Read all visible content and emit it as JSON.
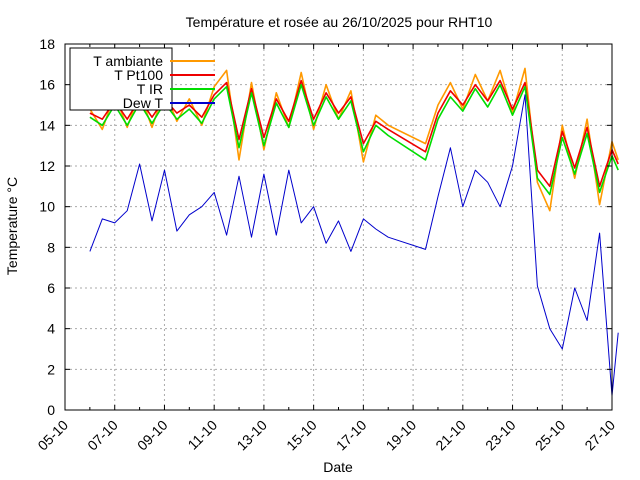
{
  "chart_data": {
    "type": "line",
    "title": "Température et rosée au 26/10/2025 pour RHT10",
    "xlabel": "Date",
    "ylabel": "Temperature °C",
    "x_range": [
      "2025-10-05",
      "2025-10-27"
    ],
    "x_ticks": [
      "05-10",
      "07-10",
      "09-10",
      "11-10",
      "13-10",
      "15-10",
      "17-10",
      "19-10",
      "21-10",
      "23-10",
      "25-10",
      "27-10"
    ],
    "ylim": [
      0,
      18
    ],
    "y_ticks": [
      0,
      2,
      4,
      6,
      8,
      10,
      12,
      14,
      16,
      18
    ],
    "grid": true,
    "legend_position": "top-left",
    "x": [
      "2025-10-06 00:00",
      "2025-10-06 12:00",
      "2025-10-07 00:00",
      "2025-10-07 12:00",
      "2025-10-08 00:00",
      "2025-10-08 12:00",
      "2025-10-09 00:00",
      "2025-10-09 12:00",
      "2025-10-10 00:00",
      "2025-10-10 12:00",
      "2025-10-11 00:00",
      "2025-10-11 12:00",
      "2025-10-12 00:00",
      "2025-10-12 12:00",
      "2025-10-13 00:00",
      "2025-10-13 12:00",
      "2025-10-14 00:00",
      "2025-10-14 12:00",
      "2025-10-15 00:00",
      "2025-10-15 12:00",
      "2025-10-16 00:00",
      "2025-10-16 12:00",
      "2025-10-17 00:00",
      "2025-10-17 12:00",
      "2025-10-18 00:00",
      "2025-10-19 12:00",
      "2025-10-20 00:00",
      "2025-10-20 12:00",
      "2025-10-21 00:00",
      "2025-10-21 12:00",
      "2025-10-22 00:00",
      "2025-10-22 12:00",
      "2025-10-23 00:00",
      "2025-10-23 12:00",
      "2025-10-24 00:00",
      "2025-10-24 12:00",
      "2025-10-25 00:00",
      "2025-10-25 12:00",
      "2025-10-26 00:00",
      "2025-10-26 12:00",
      "2025-10-27 00:00",
      "2025-10-27 06:00"
    ],
    "series": [
      {
        "name": "T ambiante",
        "color": "#ff9900",
        "values": [
          14.8,
          13.8,
          15.5,
          13.9,
          15.6,
          13.9,
          15.7,
          14.2,
          15.3,
          14.0,
          15.9,
          16.7,
          12.3,
          16.1,
          12.8,
          15.6,
          13.9,
          16.6,
          13.8,
          16.0,
          14.3,
          15.7,
          12.2,
          14.5,
          14.0,
          13.1,
          15.0,
          16.1,
          14.8,
          16.5,
          15.2,
          16.7,
          14.6,
          16.8,
          11.2,
          9.8,
          14.0,
          11.4,
          14.3,
          10.1,
          13.2,
          12.3
        ]
      },
      {
        "name": "T Pt100",
        "color": "#ee0000",
        "values": [
          14.6,
          14.3,
          15.2,
          14.3,
          15.3,
          14.4,
          15.3,
          14.6,
          15.0,
          14.4,
          15.5,
          16.1,
          13.3,
          15.8,
          13.4,
          15.3,
          14.2,
          16.2,
          14.3,
          15.6,
          14.6,
          15.4,
          13.1,
          14.2,
          13.8,
          12.7,
          14.6,
          15.7,
          15.0,
          16.0,
          15.2,
          16.2,
          14.8,
          16.1,
          11.8,
          11.0,
          13.7,
          11.9,
          13.9,
          11.0,
          12.8,
          12.1
        ]
      },
      {
        "name": "T IR",
        "color": "#00dd00",
        "values": [
          14.4,
          14.0,
          15.0,
          14.0,
          15.1,
          14.1,
          15.1,
          14.3,
          14.8,
          14.1,
          15.3,
          15.9,
          12.9,
          15.6,
          13.0,
          15.1,
          13.9,
          16.0,
          14.0,
          15.4,
          14.3,
          15.2,
          12.7,
          14.0,
          13.5,
          12.3,
          14.3,
          15.4,
          14.7,
          15.8,
          14.9,
          16.0,
          14.5,
          15.9,
          11.4,
          10.6,
          13.4,
          11.6,
          13.6,
          10.7,
          12.5,
          11.8
        ]
      },
      {
        "name": "Dew T",
        "color": "#0000cc",
        "values": [
          7.8,
          9.4,
          9.2,
          9.8,
          12.1,
          9.3,
          11.8,
          8.8,
          9.6,
          10.0,
          10.7,
          8.6,
          11.5,
          8.5,
          11.6,
          8.6,
          11.8,
          9.2,
          10.0,
          8.2,
          9.3,
          7.8,
          9.4,
          8.9,
          8.5,
          7.9,
          10.5,
          12.9,
          10.0,
          11.8,
          11.2,
          10.0,
          12.0,
          15.5,
          6.1,
          4.0,
          3.0,
          6.0,
          4.4,
          8.7,
          0.7,
          3.8
        ]
      }
    ]
  }
}
